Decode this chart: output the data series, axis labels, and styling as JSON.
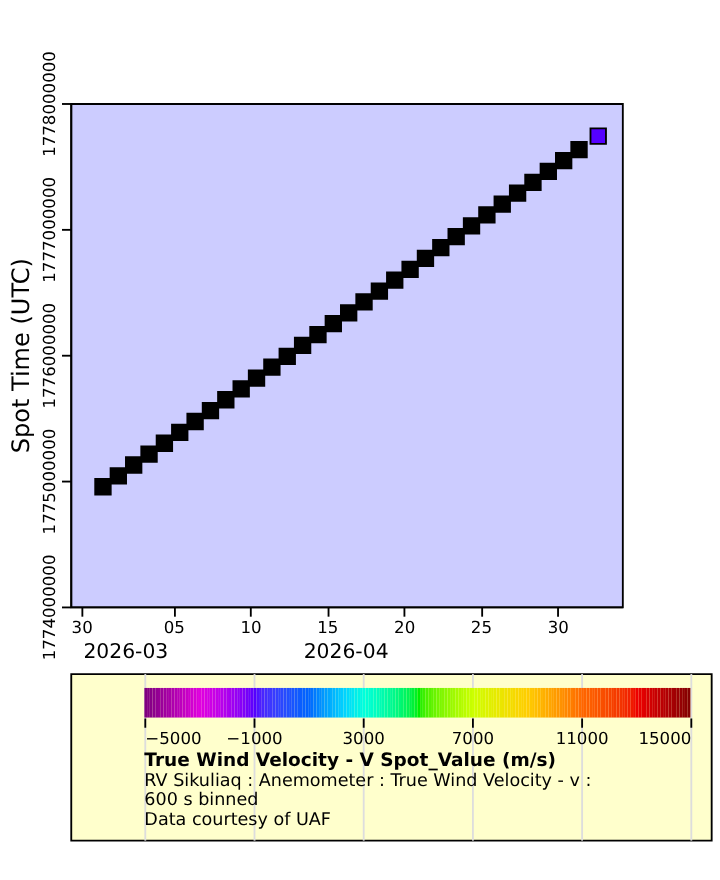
{
  "chart_data": {
    "type": "scatter",
    "ylabel": "Spot Time (UTC)",
    "x": [
      "2026-03-31T10:00",
      "2026-04-01T10:00",
      "2026-04-02T10:00",
      "2026-04-03T10:00",
      "2026-04-04T10:00",
      "2026-04-05T10:00",
      "2026-04-06T10:00",
      "2026-04-07T10:00",
      "2026-04-08T10:00",
      "2026-04-09T10:00",
      "2026-04-10T10:00",
      "2026-04-11T10:00",
      "2026-04-12T10:00",
      "2026-04-13T10:00",
      "2026-04-14T10:00",
      "2026-04-15T10:00",
      "2026-04-16T10:00",
      "2026-04-17T10:00",
      "2026-04-18T10:00",
      "2026-04-19T10:00",
      "2026-04-20T10:00",
      "2026-04-21T10:00",
      "2026-04-22T10:00",
      "2026-04-23T10:00",
      "2026-04-24T10:00",
      "2026-04-25T10:00",
      "2026-04-26T10:00",
      "2026-04-27T10:00",
      "2026-04-28T10:00",
      "2026-04-29T10:00",
      "2026-04-30T10:00",
      "2026-05-01T10:00",
      "2026-05-02T16:00"
    ],
    "values": [
      1774951200,
      1775037600,
      1775124000,
      1775210400,
      1775296800,
      1775383200,
      1775469600,
      1775556000,
      1775642400,
      1775728800,
      1775815200,
      1775901600,
      1775988000,
      1776074400,
      1776160800,
      1776247200,
      1776333600,
      1776420000,
      1776506400,
      1776592800,
      1776679200,
      1776765600,
      1776852000,
      1776938400,
      1777024800,
      1777111200,
      1777197600,
      1777284000,
      1777370400,
      1777456800,
      1777543200,
      1777629600,
      1777737600
    ],
    "colors": [
      "#000000",
      "#000000",
      "#000000",
      "#000000",
      "#000000",
      "#000000",
      "#000000",
      "#000000",
      "#000000",
      "#000000",
      "#000000",
      "#000000",
      "#000000",
      "#000000",
      "#000000",
      "#000000",
      "#000000",
      "#000000",
      "#000000",
      "#000000",
      "#000000",
      "#000000",
      "#000000",
      "#000000",
      "#000000",
      "#000000",
      "#000000",
      "#000000",
      "#000000",
      "#000000",
      "#000000",
      "#000000",
      "#5500ff"
    ],
    "xlim": [
      "2026-03-29T07:00",
      "2026-05-04T05:00"
    ],
    "xticks": [
      {
        "value": "2026-03-30",
        "label": "30"
      },
      {
        "value": "2026-04-05",
        "label": "05"
      },
      {
        "value": "2026-04-10",
        "label": "10"
      },
      {
        "value": "2026-04-15",
        "label": "15"
      },
      {
        "value": "2026-04-20",
        "label": "20"
      },
      {
        "value": "2026-04-25",
        "label": "25"
      },
      {
        "value": "2026-04-30",
        "label": "30"
      }
    ],
    "ylim": [
      1774000000,
      1778000000
    ],
    "yticks": [
      1774000000,
      1775000000,
      1776000000,
      1777000000,
      1778000000
    ],
    "marker": "square",
    "grid": false,
    "clabel": "True Wind Velocity - V Spot_Value (m/s)",
    "clim": [
      -5000,
      15000
    ],
    "cticks": [
      -5000,
      -1000,
      3000,
      7000,
      11000,
      15000
    ],
    "annotations": [
      "2026-03",
      "2026-04",
      "RV Sikuliaq : Anemometer : True Wind Velocity - v :\n600 s binned",
      "Data courtesy of UAF"
    ]
  }
}
